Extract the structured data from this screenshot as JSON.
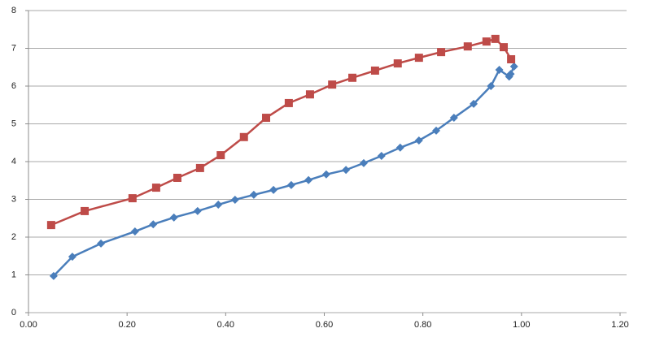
{
  "chart_data": {
    "type": "scatter",
    "lines": true,
    "grid": true,
    "xlim": [
      0,
      1.2
    ],
    "ylim": [
      0,
      8
    ],
    "xticks": [
      {
        "value": 0,
        "label": "0.00"
      },
      {
        "value": 0.2,
        "label": "0.20"
      },
      {
        "value": 0.4,
        "label": "0.40"
      },
      {
        "value": 0.6,
        "label": "0.60"
      },
      {
        "value": 0.8,
        "label": "0.80"
      },
      {
        "value": 1,
        "label": "1.00"
      },
      {
        "value": 1.2,
        "label": "1.20"
      }
    ],
    "yticks": [
      0,
      1,
      2,
      3,
      4,
      5,
      6,
      7,
      8
    ],
    "series": [
      {
        "color": "#4a7ebb",
        "marker": "diamond",
        "x": [
          0.051,
          0.089,
          0.147,
          0.216,
          0.253,
          0.295,
          0.343,
          0.385,
          0.419,
          0.457,
          0.497,
          0.533,
          0.568,
          0.604,
          0.644,
          0.68,
          0.716,
          0.754,
          0.792,
          0.827,
          0.863,
          0.903,
          0.938,
          0.955,
          0.975,
          0.978,
          0.985
        ],
        "values": [
          0.97,
          1.48,
          1.83,
          2.15,
          2.34,
          2.52,
          2.69,
          2.86,
          2.99,
          3.12,
          3.25,
          3.38,
          3.51,
          3.66,
          3.78,
          3.96,
          4.15,
          4.37,
          4.56,
          4.82,
          5.16,
          5.53,
          6.0,
          6.43,
          6.25,
          6.32,
          6.52
        ]
      },
      {
        "color": "#be4b48",
        "marker": "square",
        "x": [
          0.046,
          0.114,
          0.211,
          0.259,
          0.302,
          0.348,
          0.39,
          0.437,
          0.482,
          0.528,
          0.571,
          0.616,
          0.657,
          0.703,
          0.749,
          0.792,
          0.837,
          0.891,
          0.929,
          0.947,
          0.964,
          0.979
        ],
        "values": [
          2.32,
          2.69,
          3.03,
          3.31,
          3.57,
          3.83,
          4.17,
          4.65,
          5.16,
          5.55,
          5.78,
          6.04,
          6.22,
          6.41,
          6.6,
          6.75,
          6.9,
          7.05,
          7.18,
          7.25,
          7.03,
          6.71
        ]
      }
    ]
  }
}
